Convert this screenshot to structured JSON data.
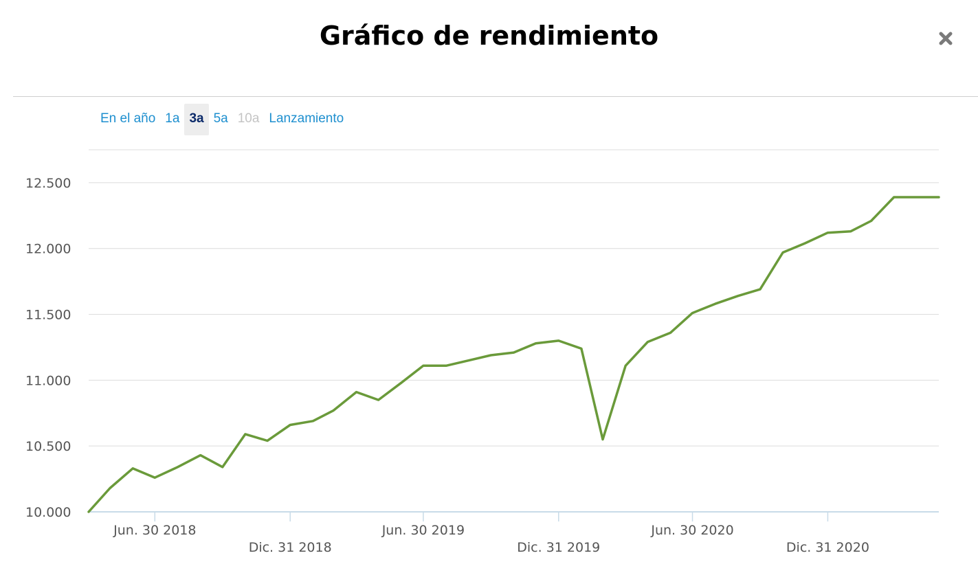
{
  "dialog": {
    "title": "Gráfico de rendimiento",
    "close_icon": "close-icon"
  },
  "range_tabs": [
    {
      "label": "En el año",
      "state": "enabled"
    },
    {
      "label": "1a",
      "state": "enabled"
    },
    {
      "label": "3a",
      "state": "active"
    },
    {
      "label": "5a",
      "state": "enabled"
    },
    {
      "label": "10a",
      "state": "disabled"
    },
    {
      "label": "Lanzamiento",
      "state": "enabled"
    }
  ],
  "colors": {
    "line": "#6a9a3a",
    "tab_link": "#1e8fcf",
    "tab_active": "#0b2a6a",
    "tab_disabled": "#c4c4c4",
    "grid": "#dcdcdc",
    "axis": "#c8dbe8"
  },
  "chart_data": {
    "type": "line",
    "title": "",
    "xlabel": "",
    "ylabel": "",
    "ylim": [
      10000,
      12750
    ],
    "yticks": [
      10000,
      10500,
      11000,
      11500,
      12000,
      12500
    ],
    "ytick_labels": [
      "10.000",
      "10.500",
      "11.000",
      "11.500",
      "12.000",
      "12.500"
    ],
    "xlim": [
      "2018-04-01",
      "2021-05-31"
    ],
    "xticks": [
      "2018-06-30",
      "2018-12-31",
      "2019-06-30",
      "2019-12-31",
      "2020-06-30",
      "2020-12-31"
    ],
    "xtick_labels": [
      "Jun. 30 2018",
      "Dic. 31 2018",
      "Jun. 30 2019",
      "Dic. 31 2019",
      "Jun. 30 2020",
      "Dic. 31 2020"
    ],
    "grid": "horizontal",
    "series": [
      {
        "x": [
          "2018-04-01",
          "2018-04-30",
          "2018-05-31",
          "2018-06-30",
          "2018-07-31",
          "2018-08-31",
          "2018-09-30",
          "2018-10-31",
          "2018-11-30",
          "2018-12-31",
          "2019-01-31",
          "2019-02-28",
          "2019-03-31",
          "2019-04-30",
          "2019-05-31",
          "2019-06-30",
          "2019-07-31",
          "2019-08-31",
          "2019-09-30",
          "2019-10-31",
          "2019-11-30",
          "2019-12-31",
          "2020-01-31",
          "2020-02-29",
          "2020-03-31",
          "2020-04-30",
          "2020-05-31",
          "2020-06-30",
          "2020-07-31",
          "2020-08-31",
          "2020-09-30",
          "2020-10-31",
          "2020-11-30",
          "2020-12-31",
          "2021-01-31",
          "2021-02-28",
          "2021-03-31",
          "2021-04-30",
          "2021-05-31"
        ],
        "values": [
          10000,
          10180,
          10330,
          10260,
          10340,
          10430,
          10340,
          10590,
          10540,
          10660,
          10690,
          10770,
          10910,
          10850,
          10980,
          11110,
          11110,
          11150,
          11190,
          11210,
          11280,
          11300,
          11240,
          10550,
          11110,
          11290,
          11360,
          11510,
          11580,
          11640,
          11690,
          11970,
          12040,
          12120,
          12130,
          12210,
          12390,
          12390,
          12390
        ]
      }
    ]
  }
}
